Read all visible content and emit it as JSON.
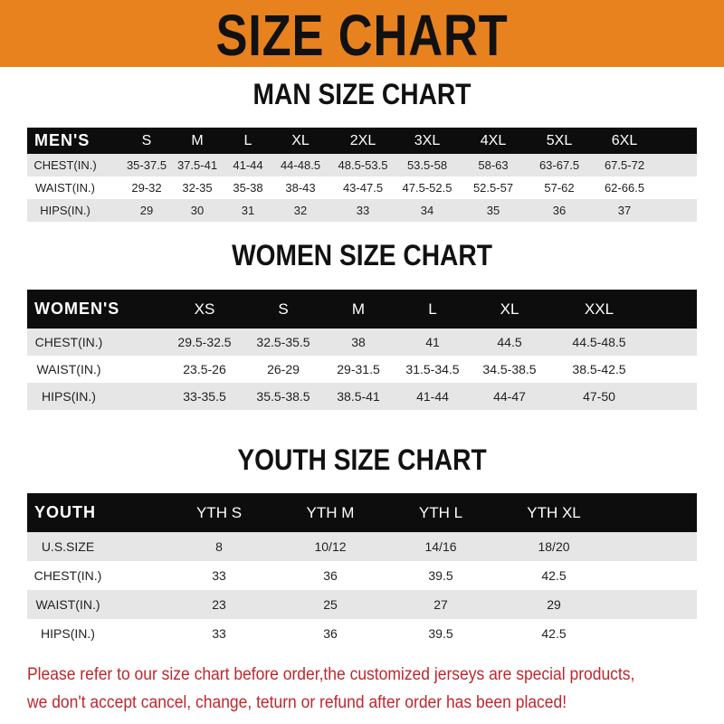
{
  "banner": {
    "title": "SIZE CHART",
    "color": "#e8821e"
  },
  "men": {
    "title": "MAN SIZE CHART",
    "header": [
      "MEN'S",
      "S",
      "M",
      "L",
      "XL",
      "2XL",
      "3XL",
      "4XL",
      "5XL",
      "6XL"
    ],
    "rows": [
      [
        "CHEST(IN.)",
        "35-37.5",
        "37.5-41",
        "41-44",
        "44-48.5",
        "48.5-53.5",
        "53.5-58",
        "58-63",
        "63-67.5",
        "67.5-72"
      ],
      [
        "WAIST(IN.)",
        "29-32",
        "32-35",
        "35-38",
        "38-43",
        "43-47.5",
        "47.5-52.5",
        "52.5-57",
        "57-62",
        "62-66.5"
      ],
      [
        "HIPS(IN.)",
        "29",
        "30",
        "31",
        "32",
        "33",
        "34",
        "35",
        "36",
        "37"
      ]
    ]
  },
  "women": {
    "title": "WOMEN SIZE CHART",
    "header": [
      "WOMEN'S",
      "XS",
      "S",
      "M",
      "L",
      "XL",
      "XXL"
    ],
    "rows": [
      [
        "CHEST(IN.)",
        "29.5-32.5",
        "32.5-35.5",
        "38",
        "41",
        "44.5",
        "44.5-48.5"
      ],
      [
        "WAIST(IN.)",
        "23.5-26",
        "26-29",
        "29-31.5",
        "31.5-34.5",
        "34.5-38.5",
        "38.5-42.5"
      ],
      [
        "HIPS(IN.)",
        "33-35.5",
        "35.5-38.5",
        "38.5-41",
        "41-44",
        "44-47",
        "47-50"
      ]
    ]
  },
  "youth": {
    "title": "YOUTH SIZE CHART",
    "header": [
      "YOUTH",
      "YTH S",
      "YTH M",
      "YTH L",
      "YTH XL"
    ],
    "rows": [
      [
        "U.S.SIZE",
        "8",
        "10/12",
        "14/16",
        "18/20"
      ],
      [
        "CHEST(IN.)",
        "33",
        "36",
        "39.5",
        "42.5"
      ],
      [
        "WAIST(IN.)",
        "23",
        "25",
        "27",
        "29"
      ],
      [
        "HIPS(IN.)",
        "33",
        "36",
        "39.5",
        "42.5"
      ]
    ]
  },
  "notice": {
    "line1": "Please refer to our size chart before order,the customized jerseys are special products,",
    "line2": "we don't accept cancel, change, teturn or refund after order has been placed!",
    "color": "#c0262d"
  }
}
